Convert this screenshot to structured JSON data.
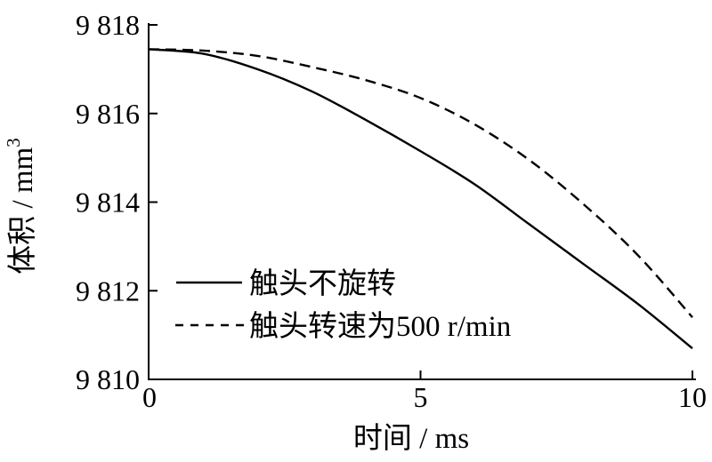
{
  "chart_data": {
    "type": "line",
    "title": "",
    "xlabel": "时间 / ms",
    "ylabel": "体积 / mm³",
    "ylabel_base": "体积 / mm",
    "ylabel_sup": "3",
    "xlim": [
      0,
      10
    ],
    "ylim": [
      9810,
      9818
    ],
    "grid": false,
    "legend_position": "inside-lower-left",
    "xticks": [
      {
        "value": 0,
        "label": "0"
      },
      {
        "value": 5,
        "label": "5"
      },
      {
        "value": 10,
        "label": "10"
      }
    ],
    "yticks": [
      {
        "value": 9810,
        "label": "9 810"
      },
      {
        "value": 9812,
        "label": "9 812"
      },
      {
        "value": 9814,
        "label": "9 814"
      },
      {
        "value": 9816,
        "label": "9 816"
      },
      {
        "value": 9818,
        "label": "9 818"
      }
    ],
    "x": [
      0,
      1,
      2,
      3,
      4,
      5,
      6,
      7,
      8,
      9,
      10
    ],
    "series": [
      {
        "name": "触头不旋转",
        "line_style": "solid",
        "color": "#000000",
        "values": [
          9817.45,
          9817.35,
          9817.0,
          9816.5,
          9815.85,
          9815.15,
          9814.4,
          9813.5,
          9812.6,
          9811.7,
          9810.7
        ]
      },
      {
        "name": "触头转速为500 r/min",
        "line_style": "dashed",
        "color": "#000000",
        "values": [
          9817.45,
          9817.42,
          9817.3,
          9817.05,
          9816.75,
          9816.35,
          9815.75,
          9814.95,
          9813.95,
          9812.8,
          9811.4
        ]
      }
    ]
  },
  "colors": {
    "foreground": "#000000",
    "background": "#ffffff"
  }
}
